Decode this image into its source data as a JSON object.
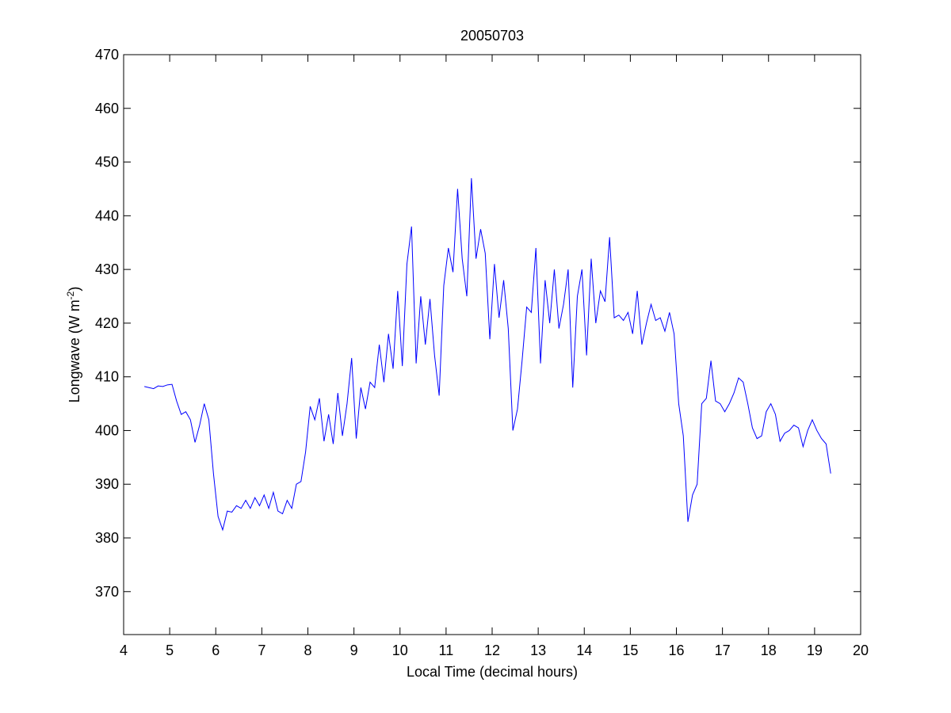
{
  "chart_data": {
    "type": "line",
    "title": "20050703",
    "xlabel": "Local Time (decimal hours)",
    "ylabel": {
      "text": "Longwave (W m",
      "superscript": "-2",
      "suffix": ")"
    },
    "color": "#0000ff",
    "xlim": [
      4,
      20
    ],
    "xticks": [
      4,
      5,
      6,
      7,
      8,
      9,
      10,
      11,
      12,
      13,
      14,
      15,
      16,
      17,
      18,
      19,
      20
    ],
    "ylim": [
      362,
      470
    ],
    "yticks": [
      370,
      380,
      390,
      400,
      410,
      420,
      430,
      440,
      450,
      460,
      470
    ],
    "x": [
      4.45,
      4.55,
      4.65,
      4.75,
      4.85,
      4.95,
      5.05,
      5.15,
      5.25,
      5.35,
      5.45,
      5.55,
      5.65,
      5.75,
      5.85,
      5.95,
      6.05,
      6.15,
      6.25,
      6.35,
      6.45,
      6.55,
      6.65,
      6.75,
      6.85,
      6.95,
      7.05,
      7.15,
      7.25,
      7.35,
      7.45,
      7.55,
      7.65,
      7.75,
      7.85,
      7.95,
      8.05,
      8.15,
      8.25,
      8.35,
      8.45,
      8.55,
      8.65,
      8.75,
      8.85,
      8.95,
      9.05,
      9.15,
      9.25,
      9.35,
      9.45,
      9.55,
      9.65,
      9.75,
      9.85,
      9.95,
      10.05,
      10.15,
      10.25,
      10.35,
      10.45,
      10.55,
      10.65,
      10.75,
      10.85,
      10.95,
      11.05,
      11.15,
      11.25,
      11.35,
      11.45,
      11.55,
      11.65,
      11.75,
      11.85,
      11.95,
      12.05,
      12.15,
      12.25,
      12.35,
      12.45,
      12.55,
      12.65,
      12.75,
      12.85,
      12.95,
      13.05,
      13.15,
      13.25,
      13.35,
      13.45,
      13.55,
      13.65,
      13.75,
      13.85,
      13.95,
      14.05,
      14.15,
      14.25,
      14.35,
      14.45,
      14.55,
      14.65,
      14.75,
      14.85,
      14.95,
      15.05,
      15.15,
      15.25,
      15.35,
      15.45,
      15.55,
      15.65,
      15.75,
      15.85,
      15.95,
      16.05,
      16.15,
      16.25,
      16.35,
      16.45,
      16.55,
      16.65,
      16.75,
      16.85,
      16.95,
      17.05,
      17.15,
      17.25,
      17.35,
      17.45,
      17.55,
      17.65,
      17.75,
      17.85,
      17.95,
      18.05,
      18.15,
      18.25,
      18.35,
      18.45,
      18.55,
      18.65,
      18.75,
      18.85,
      18.95,
      19.05,
      19.15,
      19.25,
      19.35
    ],
    "values": [
      408.2,
      408,
      407.8,
      408.3,
      408.2,
      408.5,
      408.6,
      405.5,
      403,
      403.5,
      402,
      397.8,
      401,
      405,
      402,
      392,
      384,
      381.5,
      385,
      384.8,
      386,
      385.5,
      387,
      385.5,
      387.5,
      386,
      388,
      385.5,
      388.5,
      385,
      384.5,
      387,
      385.5,
      390,
      390.5,
      396,
      404.5,
      402,
      406,
      398,
      403,
      397.5,
      407,
      399,
      405,
      413.5,
      398.5,
      408,
      404,
      409,
      408,
      416,
      409,
      418,
      411.5,
      426,
      412,
      431,
      438,
      412.5,
      425,
      416,
      424.5,
      414,
      406.5,
      427,
      434,
      429.5,
      445,
      432,
      425,
      447,
      432,
      437.5,
      433,
      417,
      431,
      421,
      428,
      419,
      400,
      404,
      413,
      423,
      422,
      434,
      412.5,
      428,
      420,
      430,
      419,
      423.5,
      430,
      408,
      425,
      430,
      414,
      432,
      420,
      426,
      424,
      436,
      421,
      421.5,
      420.5,
      422,
      418,
      426,
      416,
      420,
      423.5,
      420.5,
      421,
      418.5,
      422,
      418,
      405,
      399,
      383,
      388,
      390,
      405,
      406,
      413,
      405.5,
      405,
      403.5,
      405,
      407,
      409.8,
      409,
      405,
      400.5,
      398.5,
      399,
      403.5,
      405,
      403,
      398,
      399.5,
      400,
      401,
      400.5,
      397,
      400,
      402,
      400,
      398.5,
      397.5,
      392
    ]
  }
}
